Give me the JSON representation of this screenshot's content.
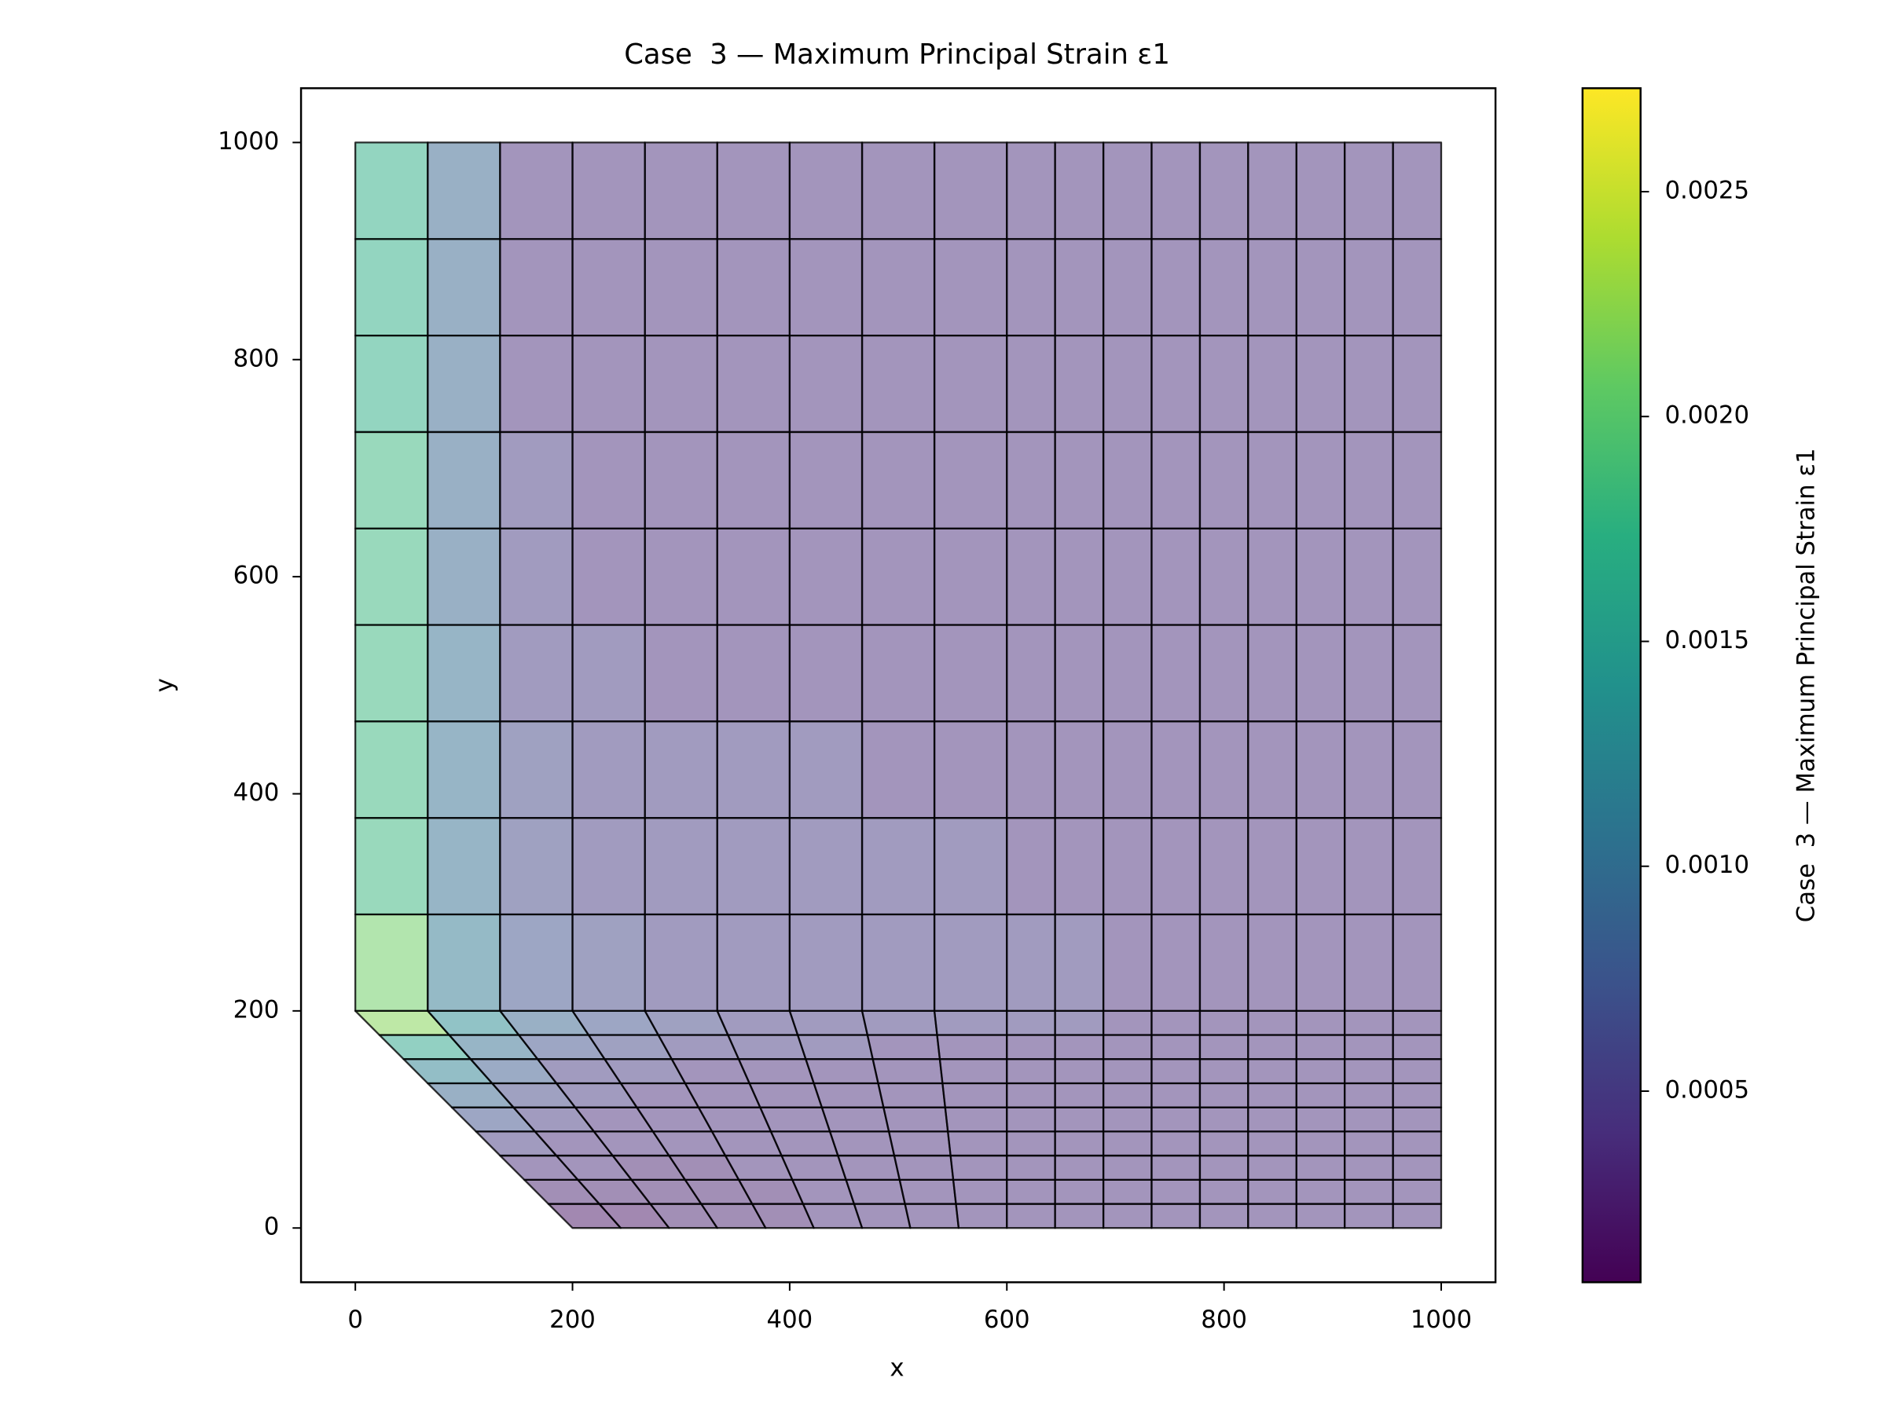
{
  "chart_data": {
    "type": "mesh",
    "title": "Case  3 — Maximum Principal Strain ε1",
    "x_label": "x",
    "y_label": "y",
    "colorbar_label": "Case  3 — Maximum Principal Strain ε1",
    "xlim": [
      -50,
      1050
    ],
    "ylim": [
      -50,
      1050
    ],
    "xticks": [
      0,
      200,
      400,
      600,
      800,
      1000
    ],
    "yticks": [
      0,
      200,
      400,
      600,
      800,
      1000
    ],
    "clim": [
      7.5e-05,
      0.00273
    ],
    "colorbar_ticks": [
      {
        "value": 0.0005,
        "label": "0.0005"
      },
      {
        "value": 0.001,
        "label": "0.0010"
      },
      {
        "value": 0.0015,
        "label": "0.0015"
      },
      {
        "value": 0.002,
        "label": "0.0020"
      },
      {
        "value": 0.0025,
        "label": "0.0025"
      }
    ],
    "colormap": [
      "#440154",
      "#472d7b",
      "#3b528b",
      "#2c728e",
      "#21918c",
      "#28ae80",
      "#5ec962",
      "#addc30",
      "#fde725"
    ],
    "alpha": 0.5,
    "edge_color": "#000000",
    "mesh": {
      "x_top": [
        0,
        66.7,
        133.3,
        200,
        266.7,
        333.3,
        400,
        466.7,
        533.3,
        600,
        644.4,
        688.9,
        733.3,
        777.8,
        822.2,
        866.7,
        911.1,
        955.6,
        1000
      ],
      "x_bottom": [
        200,
        244.4,
        288.9,
        333.3,
        377.8,
        422.2,
        466.7,
        511.1,
        555.6,
        600,
        644.4,
        688.9,
        733.3,
        777.8,
        822.2,
        866.7,
        911.1,
        955.6,
        1000
      ],
      "y_upper": [
        200,
        288.9,
        377.8,
        466.7,
        555.6,
        644.4,
        733.3,
        822.2,
        911.1,
        1000
      ],
      "y_lower": [
        0,
        22.2,
        44.4,
        66.7,
        88.9,
        111.1,
        133.3,
        155.6,
        177.8,
        200
      ]
    },
    "values_upper": [
      [
        0.0021,
        0.0011,
        0.0007,
        0.0006,
        0.0005,
        0.0005,
        0.0005,
        0.0005,
        0.0005,
        0.0005,
        0.0005,
        0.0004,
        0.0004,
        0.0004,
        0.0004,
        0.0004,
        0.0004,
        0.0004
      ],
      [
        0.0018,
        0.001,
        0.0006,
        0.0005,
        0.0005,
        0.0005,
        0.0005,
        0.0005,
        0.0005,
        0.0004,
        0.0004,
        0.0004,
        0.0004,
        0.0004,
        0.0004,
        0.0004,
        0.0004,
        0.0004
      ],
      [
        0.0018,
        0.001,
        0.0006,
        0.0005,
        0.0005,
        0.0005,
        0.0005,
        0.0004,
        0.0004,
        0.0004,
        0.0004,
        0.0004,
        0.0004,
        0.0004,
        0.0004,
        0.0004,
        0.0004,
        0.0004
      ],
      [
        0.0018,
        0.001,
        0.0005,
        0.0005,
        0.0004,
        0.0004,
        0.0004,
        0.0004,
        0.0004,
        0.0004,
        0.0004,
        0.0004,
        0.0004,
        0.0004,
        0.0004,
        0.0004,
        0.0004,
        0.0004
      ],
      [
        0.0018,
        0.0009,
        0.0005,
        0.0004,
        0.0004,
        0.0004,
        0.0004,
        0.0004,
        0.0004,
        0.0004,
        0.0004,
        0.0004,
        0.0004,
        0.0004,
        0.0004,
        0.0004,
        0.0004,
        0.0004
      ],
      [
        0.0018,
        0.0009,
        0.0005,
        0.0004,
        0.0004,
        0.0004,
        0.0004,
        0.0004,
        0.0004,
        0.0004,
        0.0004,
        0.0004,
        0.0004,
        0.0004,
        0.0004,
        0.0004,
        0.0004,
        0.0004
      ],
      [
        0.0017,
        0.0009,
        0.0004,
        0.0004,
        0.0004,
        0.0004,
        0.0004,
        0.0004,
        0.0004,
        0.0004,
        0.0004,
        0.0004,
        0.0004,
        0.0004,
        0.0004,
        0.0004,
        0.0004,
        0.0004
      ],
      [
        0.0017,
        0.0009,
        0.0004,
        0.0004,
        0.0004,
        0.0004,
        0.0004,
        0.0004,
        0.0004,
        0.0004,
        0.0004,
        0.0004,
        0.0004,
        0.0004,
        0.0004,
        0.0004,
        0.0004,
        0.0004
      ],
      [
        0.0017,
        0.0009,
        0.0004,
        0.0004,
        0.0004,
        0.0004,
        0.0004,
        0.0004,
        0.0004,
        0.0004,
        0.0004,
        0.0004,
        0.0004,
        0.0004,
        0.0004,
        0.0004,
        0.0004,
        0.0004
      ]
    ],
    "values_lower": [
      [
        0.0002,
        0.0002,
        0.0003,
        0.0003,
        0.0003,
        0.0004,
        0.0004,
        0.0004,
        0.0004,
        0.0004,
        0.0004,
        0.0004,
        0.0004,
        0.0004,
        0.0004,
        0.0004,
        0.0004,
        0.0004
      ],
      [
        0.0003,
        0.0003,
        0.0003,
        0.0003,
        0.0003,
        0.0004,
        0.0004,
        0.0004,
        0.0004,
        0.0004,
        0.0004,
        0.0004,
        0.0004,
        0.0004,
        0.0004,
        0.0004,
        0.0004,
        0.0004
      ],
      [
        0.0004,
        0.0004,
        0.0003,
        0.0003,
        0.0004,
        0.0004,
        0.0004,
        0.0004,
        0.0004,
        0.0004,
        0.0004,
        0.0004,
        0.0004,
        0.0004,
        0.0004,
        0.0004,
        0.0004,
        0.0004
      ],
      [
        0.0005,
        0.0004,
        0.0004,
        0.0004,
        0.0004,
        0.0004,
        0.0004,
        0.0004,
        0.0004,
        0.0004,
        0.0004,
        0.0004,
        0.0004,
        0.0004,
        0.0004,
        0.0004,
        0.0004,
        0.0004
      ],
      [
        0.0007,
        0.0005,
        0.0004,
        0.0004,
        0.0004,
        0.0004,
        0.0004,
        0.0004,
        0.0004,
        0.0004,
        0.0004,
        0.0004,
        0.0004,
        0.0004,
        0.0004,
        0.0004,
        0.0004,
        0.0004
      ],
      [
        0.0009,
        0.0006,
        0.0005,
        0.0004,
        0.0004,
        0.0004,
        0.0004,
        0.0004,
        0.0004,
        0.0004,
        0.0004,
        0.0004,
        0.0004,
        0.0004,
        0.0004,
        0.0004,
        0.0004,
        0.0004
      ],
      [
        0.0012,
        0.0008,
        0.0005,
        0.0005,
        0.0004,
        0.0004,
        0.0004,
        0.0004,
        0.0004,
        0.0004,
        0.0004,
        0.0004,
        0.0004,
        0.0004,
        0.0004,
        0.0004,
        0.0004,
        0.0004
      ],
      [
        0.0016,
        0.001,
        0.0007,
        0.0006,
        0.0005,
        0.0005,
        0.0005,
        0.0004,
        0.0004,
        0.0004,
        0.0004,
        0.0004,
        0.0004,
        0.0004,
        0.0004,
        0.0004,
        0.0004,
        0.0004
      ],
      [
        0.0022,
        0.0013,
        0.0009,
        0.0007,
        0.0006,
        0.0005,
        0.0005,
        0.0005,
        0.0005,
        0.0005,
        0.0005,
        0.0004,
        0.0004,
        0.0004,
        0.0004,
        0.0004,
        0.0004,
        0.0004
      ]
    ]
  }
}
